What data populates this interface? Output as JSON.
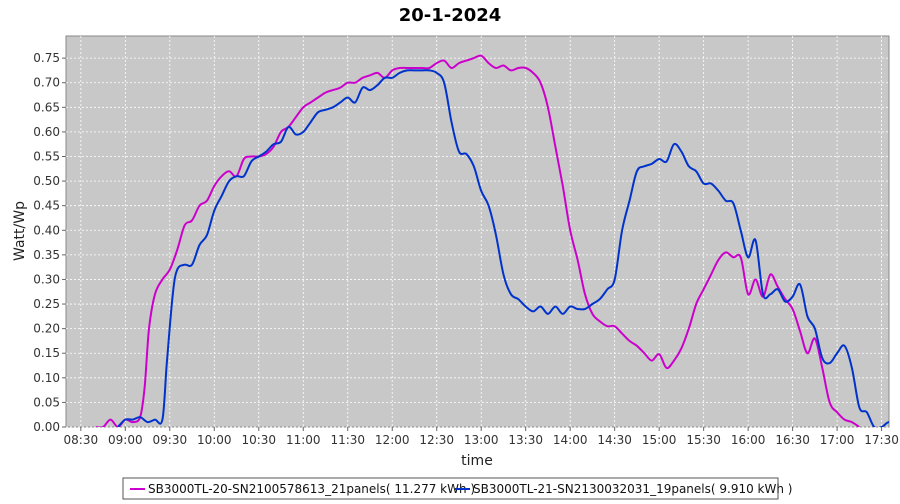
{
  "chart_data": {
    "type": "line",
    "title": "20-1-2024",
    "xlabel": "time",
    "ylabel": "Watt/Wp",
    "x_ticks": [
      "08:30",
      "09:00",
      "09:30",
      "10:00",
      "10:30",
      "11:00",
      "11:30",
      "12:00",
      "12:30",
      "13:00",
      "13:30",
      "14:00",
      "14:30",
      "15:00",
      "15:30",
      "16:00",
      "16:30",
      "17:00",
      "17:30"
    ],
    "y_ticks": [
      "0.00",
      "0.05",
      "0.10",
      "0.15",
      "0.20",
      "0.25",
      "0.30",
      "0.35",
      "0.40",
      "0.45",
      "0.50",
      "0.55",
      "0.60",
      "0.65",
      "0.70",
      "0.75"
    ],
    "xlim": [
      "08:20",
      "17:35"
    ],
    "ylim": [
      0,
      0.795
    ],
    "grid": true,
    "legend_position": "bottom",
    "series": [
      {
        "name": "SB3000TL-20-SN2100578613_21panels( 11.277 kWh )",
        "color": "#cc00cc",
        "points": [
          [
            "08:40",
            0.0
          ],
          [
            "08:45",
            0.0
          ],
          [
            "08:50",
            0.015
          ],
          [
            "08:55",
            0.0
          ],
          [
            "09:00",
            0.015
          ],
          [
            "09:05",
            0.01
          ],
          [
            "09:10",
            0.02
          ],
          [
            "09:13",
            0.08
          ],
          [
            "09:16",
            0.2
          ],
          [
            "09:20",
            0.27
          ],
          [
            "09:25",
            0.3
          ],
          [
            "09:30",
            0.32
          ],
          [
            "09:35",
            0.36
          ],
          [
            "09:40",
            0.41
          ],
          [
            "09:45",
            0.42
          ],
          [
            "09:50",
            0.45
          ],
          [
            "09:55",
            0.46
          ],
          [
            "10:00",
            0.49
          ],
          [
            "10:05",
            0.51
          ],
          [
            "10:10",
            0.52
          ],
          [
            "10:15",
            0.51
          ],
          [
            "10:20",
            0.545
          ],
          [
            "10:25",
            0.55
          ],
          [
            "10:30",
            0.55
          ],
          [
            "10:35",
            0.555
          ],
          [
            "10:40",
            0.57
          ],
          [
            "10:45",
            0.6
          ],
          [
            "10:50",
            0.61
          ],
          [
            "10:55",
            0.63
          ],
          [
            "11:00",
            0.65
          ],
          [
            "11:05",
            0.66
          ],
          [
            "11:10",
            0.67
          ],
          [
            "11:15",
            0.68
          ],
          [
            "11:20",
            0.685
          ],
          [
            "11:25",
            0.69
          ],
          [
            "11:30",
            0.7
          ],
          [
            "11:35",
            0.7
          ],
          [
            "11:40",
            0.71
          ],
          [
            "11:45",
            0.715
          ],
          [
            "11:50",
            0.72
          ],
          [
            "11:55",
            0.71
          ],
          [
            "12:00",
            0.725
          ],
          [
            "12:05",
            0.73
          ],
          [
            "12:10",
            0.73
          ],
          [
            "12:15",
            0.73
          ],
          [
            "12:20",
            0.73
          ],
          [
            "12:25",
            0.73
          ],
          [
            "12:30",
            0.74
          ],
          [
            "12:35",
            0.745
          ],
          [
            "12:40",
            0.73
          ],
          [
            "12:45",
            0.74
          ],
          [
            "12:50",
            0.745
          ],
          [
            "12:55",
            0.75
          ],
          [
            "13:00",
            0.755
          ],
          [
            "13:05",
            0.74
          ],
          [
            "13:10",
            0.73
          ],
          [
            "13:15",
            0.735
          ],
          [
            "13:20",
            0.725
          ],
          [
            "13:25",
            0.73
          ],
          [
            "13:30",
            0.73
          ],
          [
            "13:35",
            0.72
          ],
          [
            "13:40",
            0.7
          ],
          [
            "13:45",
            0.65
          ],
          [
            "13:50",
            0.57
          ],
          [
            "13:55",
            0.49
          ],
          [
            "14:00",
            0.4
          ],
          [
            "14:05",
            0.34
          ],
          [
            "14:10",
            0.27
          ],
          [
            "14:15",
            0.23
          ],
          [
            "14:20",
            0.215
          ],
          [
            "14:25",
            0.205
          ],
          [
            "14:30",
            0.205
          ],
          [
            "14:35",
            0.19
          ],
          [
            "14:40",
            0.175
          ],
          [
            "14:45",
            0.165
          ],
          [
            "14:50",
            0.15
          ],
          [
            "14:55",
            0.135
          ],
          [
            "15:00",
            0.148
          ],
          [
            "15:05",
            0.12
          ],
          [
            "15:10",
            0.135
          ],
          [
            "15:15",
            0.16
          ],
          [
            "15:20",
            0.2
          ],
          [
            "15:25",
            0.25
          ],
          [
            "15:30",
            0.28
          ],
          [
            "15:35",
            0.31
          ],
          [
            "15:40",
            0.34
          ],
          [
            "15:45",
            0.355
          ],
          [
            "15:50",
            0.345
          ],
          [
            "15:55",
            0.345
          ],
          [
            "16:00",
            0.27
          ],
          [
            "16:05",
            0.3
          ],
          [
            "16:10",
            0.265
          ],
          [
            "16:15",
            0.31
          ],
          [
            "16:20",
            0.285
          ],
          [
            "16:25",
            0.26
          ],
          [
            "16:30",
            0.24
          ],
          [
            "16:35",
            0.195
          ],
          [
            "16:40",
            0.15
          ],
          [
            "16:45",
            0.18
          ],
          [
            "16:50",
            0.12
          ],
          [
            "16:55",
            0.05
          ],
          [
            "17:00",
            0.03
          ],
          [
            "17:05",
            0.015
          ],
          [
            "17:10",
            0.01
          ],
          [
            "17:15",
            0.0
          ]
        ]
      },
      {
        "name": "SB3000TL-21-SN2130032031_19panels( 9.910 kWh )",
        "color": "#0033cc",
        "points": [
          [
            "08:55",
            0.0
          ],
          [
            "09:00",
            0.015
          ],
          [
            "09:05",
            0.015
          ],
          [
            "09:10",
            0.02
          ],
          [
            "09:15",
            0.01
          ],
          [
            "09:20",
            0.015
          ],
          [
            "09:25",
            0.015
          ],
          [
            "09:28",
            0.13
          ],
          [
            "09:32",
            0.27
          ],
          [
            "09:35",
            0.32
          ],
          [
            "09:40",
            0.33
          ],
          [
            "09:45",
            0.33
          ],
          [
            "09:50",
            0.37
          ],
          [
            "09:55",
            0.39
          ],
          [
            "10:00",
            0.44
          ],
          [
            "10:05",
            0.47
          ],
          [
            "10:10",
            0.5
          ],
          [
            "10:15",
            0.51
          ],
          [
            "10:20",
            0.51
          ],
          [
            "10:25",
            0.54
          ],
          [
            "10:30",
            0.55
          ],
          [
            "10:35",
            0.56
          ],
          [
            "10:40",
            0.575
          ],
          [
            "10:45",
            0.58
          ],
          [
            "10:50",
            0.61
          ],
          [
            "10:55",
            0.595
          ],
          [
            "11:00",
            0.6
          ],
          [
            "11:05",
            0.62
          ],
          [
            "11:10",
            0.64
          ],
          [
            "11:15",
            0.645
          ],
          [
            "11:20",
            0.65
          ],
          [
            "11:25",
            0.66
          ],
          [
            "11:30",
            0.67
          ],
          [
            "11:35",
            0.66
          ],
          [
            "11:40",
            0.69
          ],
          [
            "11:45",
            0.685
          ],
          [
            "11:50",
            0.695
          ],
          [
            "11:55",
            0.71
          ],
          [
            "12:00",
            0.71
          ],
          [
            "12:05",
            0.72
          ],
          [
            "12:10",
            0.725
          ],
          [
            "12:15",
            0.725
          ],
          [
            "12:20",
            0.725
          ],
          [
            "12:25",
            0.725
          ],
          [
            "12:30",
            0.72
          ],
          [
            "12:35",
            0.7
          ],
          [
            "12:40",
            0.62
          ],
          [
            "12:45",
            0.56
          ],
          [
            "12:50",
            0.555
          ],
          [
            "12:55",
            0.53
          ],
          [
            "13:00",
            0.48
          ],
          [
            "13:05",
            0.45
          ],
          [
            "13:10",
            0.39
          ],
          [
            "13:15",
            0.31
          ],
          [
            "13:20",
            0.27
          ],
          [
            "13:25",
            0.26
          ],
          [
            "13:30",
            0.245
          ],
          [
            "13:35",
            0.235
          ],
          [
            "13:40",
            0.245
          ],
          [
            "13:45",
            0.23
          ],
          [
            "13:50",
            0.245
          ],
          [
            "13:55",
            0.23
          ],
          [
            "14:00",
            0.245
          ],
          [
            "14:05",
            0.24
          ],
          [
            "14:10",
            0.24
          ],
          [
            "14:15",
            0.25
          ],
          [
            "14:20",
            0.26
          ],
          [
            "14:25",
            0.28
          ],
          [
            "14:30",
            0.3
          ],
          [
            "14:35",
            0.4
          ],
          [
            "14:40",
            0.46
          ],
          [
            "14:45",
            0.52
          ],
          [
            "14:50",
            0.53
          ],
          [
            "14:55",
            0.535
          ],
          [
            "15:00",
            0.545
          ],
          [
            "15:05",
            0.54
          ],
          [
            "15:10",
            0.575
          ],
          [
            "15:15",
            0.56
          ],
          [
            "15:20",
            0.53
          ],
          [
            "15:25",
            0.52
          ],
          [
            "15:30",
            0.495
          ],
          [
            "15:35",
            0.495
          ],
          [
            "15:40",
            0.48
          ],
          [
            "15:45",
            0.46
          ],
          [
            "15:50",
            0.455
          ],
          [
            "15:55",
            0.4
          ],
          [
            "16:00",
            0.345
          ],
          [
            "16:05",
            0.38
          ],
          [
            "16:10",
            0.27
          ],
          [
            "16:15",
            0.27
          ],
          [
            "16:20",
            0.28
          ],
          [
            "16:25",
            0.255
          ],
          [
            "16:30",
            0.265
          ],
          [
            "16:35",
            0.29
          ],
          [
            "16:40",
            0.225
          ],
          [
            "16:45",
            0.2
          ],
          [
            "16:50",
            0.14
          ],
          [
            "16:55",
            0.13
          ],
          [
            "17:00",
            0.15
          ],
          [
            "17:05",
            0.165
          ],
          [
            "17:10",
            0.12
          ],
          [
            "17:15",
            0.04
          ],
          [
            "17:20",
            0.03
          ],
          [
            "17:25",
            0.0
          ],
          [
            "17:30",
            0.0
          ],
          [
            "17:35",
            0.01
          ],
          [
            "17:40",
            0.0
          ]
        ]
      }
    ]
  }
}
